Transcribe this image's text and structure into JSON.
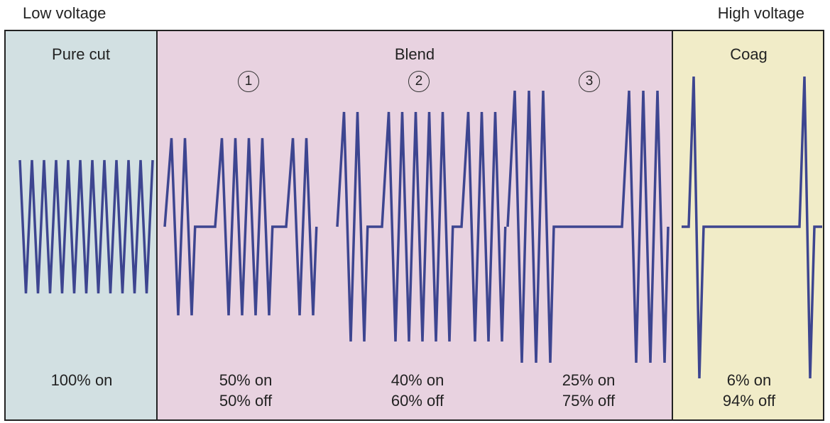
{
  "labels": {
    "low_voltage": "Low voltage",
    "high_voltage": "High voltage"
  },
  "colors": {
    "cut_bg": "#d2e0e2",
    "blend_bg": "#e8d2e0",
    "coag_bg": "#f1ecc8",
    "waveform": "#3d4590",
    "border": "#222222"
  },
  "panels": {
    "cut": {
      "title": "Pure cut",
      "duty_on": "100% on",
      "duty_off": ""
    },
    "blend": {
      "title": "Blend",
      "modes": [
        {
          "number": "1",
          "duty_on": "50% on",
          "duty_off": "50% off"
        },
        {
          "number": "2",
          "duty_on": "40% on",
          "duty_off": "60% off"
        },
        {
          "number": "3",
          "duty_on": "25% on",
          "duty_off": "75% off"
        }
      ]
    },
    "coag": {
      "title": "Coag",
      "duty_on": "6% on",
      "duty_off": "94% off"
    }
  }
}
